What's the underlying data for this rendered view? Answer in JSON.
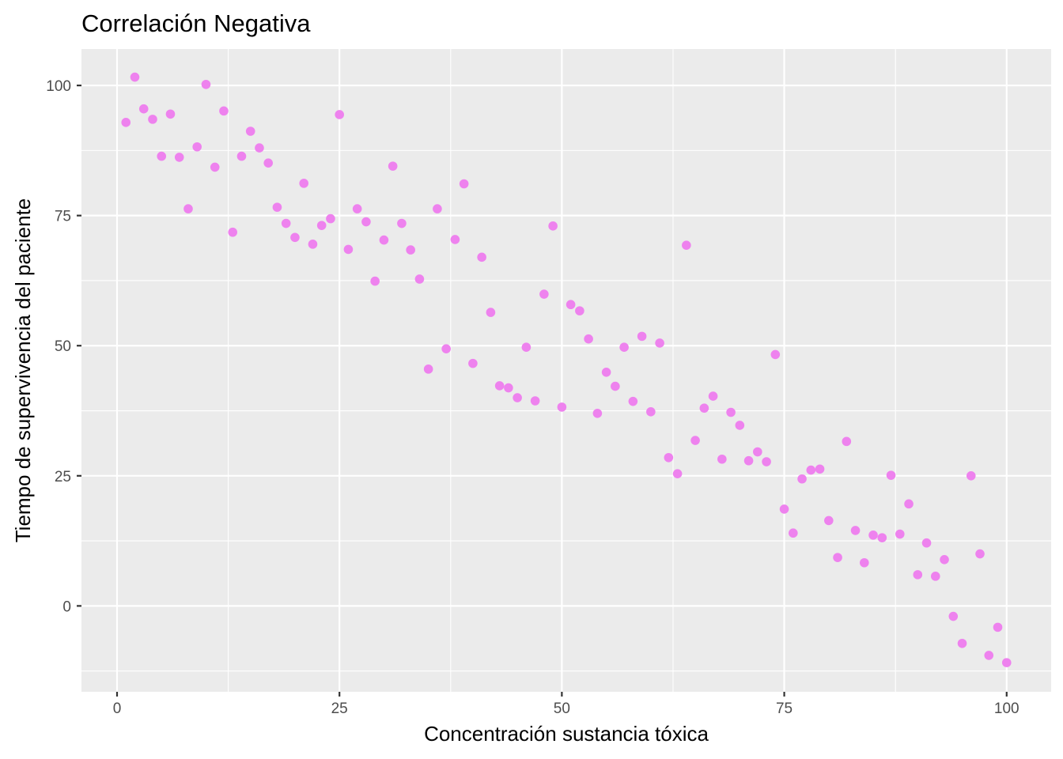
{
  "chart_data": {
    "type": "scatter",
    "title": "Correlación Negativa",
    "xlabel": "Concentración sustancia tóxica",
    "ylabel": "Tiempo de supervivencia del paciente",
    "xlim": [
      -4,
      105
    ],
    "ylim": [
      -16.5,
      107
    ],
    "x_ticks": [
      0,
      25,
      50,
      75,
      100
    ],
    "x_tick_labels": [
      "0",
      "25",
      "50",
      "75",
      "100"
    ],
    "y_ticks": [
      0,
      25,
      50,
      75,
      100
    ],
    "y_tick_labels": [
      "0",
      "25",
      "50",
      "75",
      "100"
    ],
    "x_minor_ticks": [
      12.5,
      37.5,
      62.5,
      87.5
    ],
    "y_minor_ticks": [
      -12.5,
      12.5,
      37.5,
      62.5,
      87.5
    ],
    "grid": true,
    "point_color": "#ee82ee",
    "panel_color": "#ebebeb",
    "points": [
      [
        1,
        92.9
      ],
      [
        2,
        101.6
      ],
      [
        3,
        95.5
      ],
      [
        4,
        93.5
      ],
      [
        5,
        86.4
      ],
      [
        6,
        94.5
      ],
      [
        7,
        86.2
      ],
      [
        8,
        76.3
      ],
      [
        9,
        88.2
      ],
      [
        10,
        100.2
      ],
      [
        11,
        84.3
      ],
      [
        12,
        95.1
      ],
      [
        13,
        71.8
      ],
      [
        14,
        86.4
      ],
      [
        15,
        91.2
      ],
      [
        16,
        88.0
      ],
      [
        17,
        85.1
      ],
      [
        18,
        76.6
      ],
      [
        19,
        73.5
      ],
      [
        20,
        70.8
      ],
      [
        21,
        81.2
      ],
      [
        22,
        69.5
      ],
      [
        23,
        73.1
      ],
      [
        24,
        74.4
      ],
      [
        25,
        94.4
      ],
      [
        26,
        68.5
      ],
      [
        27,
        76.3
      ],
      [
        28,
        73.8
      ],
      [
        29,
        62.4
      ],
      [
        30,
        70.3
      ],
      [
        31,
        84.5
      ],
      [
        32,
        73.5
      ],
      [
        33,
        68.4
      ],
      [
        34,
        62.8
      ],
      [
        35,
        45.5
      ],
      [
        36,
        76.3
      ],
      [
        37,
        49.4
      ],
      [
        38,
        70.4
      ],
      [
        39,
        81.1
      ],
      [
        40,
        46.6
      ],
      [
        41,
        67.0
      ],
      [
        42,
        56.4
      ],
      [
        43,
        42.3
      ],
      [
        44,
        41.9
      ],
      [
        45,
        40.0
      ],
      [
        46,
        49.7
      ],
      [
        47,
        39.4
      ],
      [
        48,
        59.9
      ],
      [
        49,
        73.0
      ],
      [
        50,
        38.2
      ],
      [
        51,
        57.9
      ],
      [
        52,
        56.7
      ],
      [
        53,
        51.3
      ],
      [
        54,
        37.0
      ],
      [
        55,
        44.9
      ],
      [
        56,
        42.2
      ],
      [
        57,
        49.7
      ],
      [
        58,
        39.3
      ],
      [
        59,
        51.8
      ],
      [
        60,
        37.3
      ],
      [
        61,
        50.5
      ],
      [
        62,
        28.5
      ],
      [
        63,
        25.4
      ],
      [
        64,
        69.3
      ],
      [
        65,
        31.8
      ],
      [
        66,
        38.0
      ],
      [
        67,
        40.3
      ],
      [
        68,
        28.2
      ],
      [
        69,
        37.2
      ],
      [
        70,
        34.7
      ],
      [
        71,
        27.9
      ],
      [
        72,
        29.6
      ],
      [
        73,
        27.7
      ],
      [
        74,
        48.3
      ],
      [
        75,
        18.6
      ],
      [
        76,
        14.0
      ],
      [
        77,
        24.4
      ],
      [
        78,
        26.1
      ],
      [
        79,
        26.3
      ],
      [
        80,
        16.4
      ],
      [
        81,
        9.3
      ],
      [
        82,
        31.6
      ],
      [
        83,
        14.5
      ],
      [
        84,
        8.3
      ],
      [
        85,
        13.6
      ],
      [
        86,
        13.1
      ],
      [
        87,
        25.1
      ],
      [
        88,
        13.8
      ],
      [
        89,
        19.6
      ],
      [
        90,
        6.0
      ],
      [
        91,
        12.1
      ],
      [
        92,
        5.7
      ],
      [
        93,
        8.9
      ],
      [
        94,
        -2.0
      ],
      [
        95,
        -7.2
      ],
      [
        96,
        25.0
      ],
      [
        97,
        10.0
      ],
      [
        98,
        -9.5
      ],
      [
        99,
        -4.1
      ],
      [
        100,
        -10.9
      ]
    ]
  }
}
